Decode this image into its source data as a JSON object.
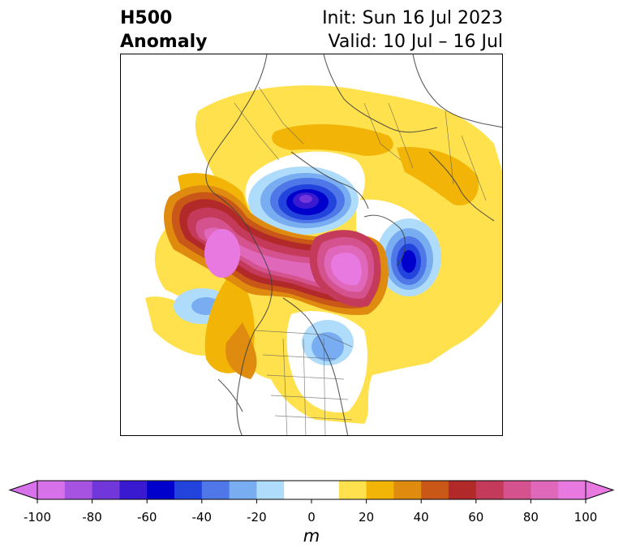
{
  "title": {
    "left_line1": "H500",
    "left_line2": "Anomaly",
    "right_line1": "Init: Sun 16 Jul 2023",
    "right_line2": "Valid: 10 Jul – 16 Jul"
  },
  "map": {
    "projection": "north-polar-stereographic",
    "field": "500 hPa geopotential height anomaly",
    "features": [
      {
        "name": "ridge-western-canada-arctic",
        "sign": "positive",
        "peak_m": 100
      },
      {
        "name": "ridge-greenland",
        "sign": "positive",
        "peak_m": 100
      },
      {
        "name": "trough-siberia-arctic",
        "sign": "negative",
        "peak_m": -80
      },
      {
        "name": "trough-north-atlantic",
        "sign": "negative",
        "peak_m": -60
      },
      {
        "name": "trough-north-pacific",
        "sign": "negative",
        "peak_m": -30
      },
      {
        "name": "trough-eastern-north-america",
        "sign": "negative",
        "peak_m": -30
      }
    ]
  },
  "colorbar": {
    "levels": [
      -100,
      -90,
      -80,
      -70,
      -60,
      -50,
      -40,
      -30,
      -20,
      -10,
      10,
      20,
      30,
      40,
      50,
      60,
      70,
      80,
      90,
      100
    ],
    "colors": [
      "#d771e9",
      "#a553e0",
      "#7237da",
      "#3a1ad1",
      "#0000cc",
      "#2344dc",
      "#4f77e8",
      "#78aef1",
      "#b0dcfb",
      "#ffffff",
      "#ffe14d",
      "#f2b507",
      "#de8b0f",
      "#c95718",
      "#b2292a",
      "#c43a5a",
      "#d4528d",
      "#df68bb",
      "#e779e0"
    ],
    "under_color": "#d771e9",
    "over_color": "#e779e0",
    "tick_values": [
      -100,
      -80,
      -60,
      -40,
      -20,
      0,
      20,
      40,
      60,
      80,
      100
    ],
    "tick_labels": [
      "-100",
      "-80",
      "-60",
      "-40",
      "-20",
      "0",
      "20",
      "40",
      "60",
      "80",
      "100"
    ],
    "unit": "m"
  }
}
